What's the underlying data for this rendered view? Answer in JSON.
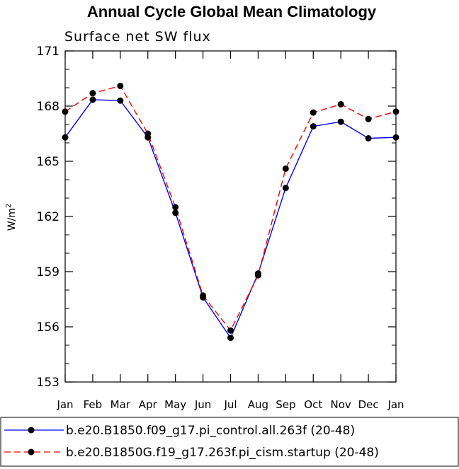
{
  "chart_data": {
    "type": "line",
    "title": "Annual Cycle Global Mean Climatology",
    "subtitle": "Surface net SW flux",
    "xlabel": "",
    "ylabel": "W/m",
    "ylabel_sup": "2",
    "ylim": [
      153,
      171
    ],
    "yticks": [
      "153",
      "156",
      "159",
      "162",
      "165",
      "168",
      "171"
    ],
    "categories": [
      "Jan",
      "Feb",
      "Mar",
      "Apr",
      "May",
      "Jun",
      "Jul",
      "Aug",
      "Sep",
      "Oct",
      "Nov",
      "Dec",
      "Jan"
    ],
    "grid": false,
    "legend_position": "bottom",
    "series": [
      {
        "name": "b.e20.B1850.f09_g17.pi_control.all.263f (20-48)",
        "color": "#0000ff",
        "style": "solid",
        "values": [
          166.3,
          168.35,
          168.3,
          166.3,
          162.2,
          157.6,
          155.4,
          158.9,
          163.55,
          166.9,
          167.15,
          166.25,
          166.3
        ]
      },
      {
        "name": "b.e20.B1850G.f19_g17.263f.pi_cism.startup (20-48)",
        "color": "#ff0000",
        "style": "dashed",
        "values": [
          167.7,
          168.7,
          169.1,
          166.5,
          162.5,
          157.7,
          155.8,
          158.8,
          164.6,
          167.65,
          168.1,
          167.3,
          167.7
        ]
      }
    ]
  }
}
